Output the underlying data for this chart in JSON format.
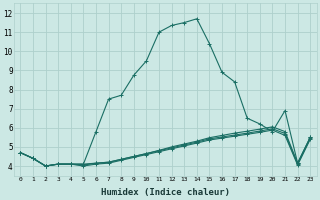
{
  "xlabel": "Humidex (Indice chaleur)",
  "xlim": [
    -0.5,
    23.5
  ],
  "ylim": [
    3.5,
    12.5
  ],
  "xtick_labels": [
    "0",
    "1",
    "2",
    "3",
    "4",
    "5",
    "6",
    "7",
    "8",
    "9",
    "10",
    "11",
    "12",
    "13",
    "14",
    "15",
    "16",
    "17",
    "18",
    "19",
    "20",
    "21",
    "22",
    "23"
  ],
  "ytick_labels": [
    "4",
    "5",
    "6",
    "7",
    "8",
    "9",
    "10",
    "11",
    "12"
  ],
  "ytick_vals": [
    4,
    5,
    6,
    7,
    8,
    9,
    10,
    11,
    12
  ],
  "bg_color": "#cce8e4",
  "grid_color": "#aed0cc",
  "line_color": "#1a6e64",
  "series": [
    {
      "x": [
        0,
        1,
        2,
        3,
        4,
        5,
        6,
        7,
        8,
        9,
        10,
        11,
        12,
        13,
        14,
        15,
        16,
        17,
        18,
        19,
        20,
        21,
        22,
        23
      ],
      "y": [
        4.7,
        4.4,
        4.0,
        4.1,
        4.1,
        4.1,
        5.8,
        7.5,
        7.7,
        8.75,
        9.5,
        11.0,
        11.35,
        11.5,
        11.7,
        10.4,
        8.9,
        8.4,
        6.5,
        6.2,
        5.8,
        6.9,
        4.15,
        5.5
      ]
    },
    {
      "x": [
        0,
        1,
        2,
        3,
        4,
        5,
        6,
        7,
        8,
        9,
        10,
        11,
        12,
        13,
        14,
        15,
        16,
        17,
        18,
        19,
        20,
        21,
        22,
        23
      ],
      "y": [
        4.7,
        4.4,
        4.0,
        4.1,
        4.1,
        4.1,
        4.15,
        4.2,
        4.35,
        4.5,
        4.65,
        4.82,
        5.0,
        5.15,
        5.3,
        5.48,
        5.6,
        5.72,
        5.82,
        5.93,
        6.05,
        5.8,
        4.15,
        5.5
      ]
    },
    {
      "x": [
        0,
        1,
        2,
        3,
        4,
        5,
        6,
        7,
        8,
        9,
        10,
        11,
        12,
        13,
        14,
        15,
        16,
        17,
        18,
        19,
        20,
        21,
        22,
        23
      ],
      "y": [
        4.7,
        4.4,
        4.0,
        4.1,
        4.1,
        4.05,
        4.15,
        4.2,
        4.35,
        4.5,
        4.65,
        4.8,
        4.95,
        5.1,
        5.25,
        5.42,
        5.52,
        5.62,
        5.72,
        5.83,
        5.95,
        5.7,
        4.1,
        5.45
      ]
    },
    {
      "x": [
        0,
        1,
        2,
        3,
        4,
        5,
        6,
        7,
        8,
        9,
        10,
        11,
        12,
        13,
        14,
        15,
        16,
        17,
        18,
        19,
        20,
        21,
        22,
        23
      ],
      "y": [
        4.7,
        4.4,
        4.0,
        4.1,
        4.1,
        4.0,
        4.1,
        4.15,
        4.3,
        4.45,
        4.6,
        4.75,
        4.9,
        5.05,
        5.2,
        5.36,
        5.46,
        5.56,
        5.66,
        5.76,
        5.88,
        5.6,
        4.05,
        5.4
      ]
    }
  ]
}
